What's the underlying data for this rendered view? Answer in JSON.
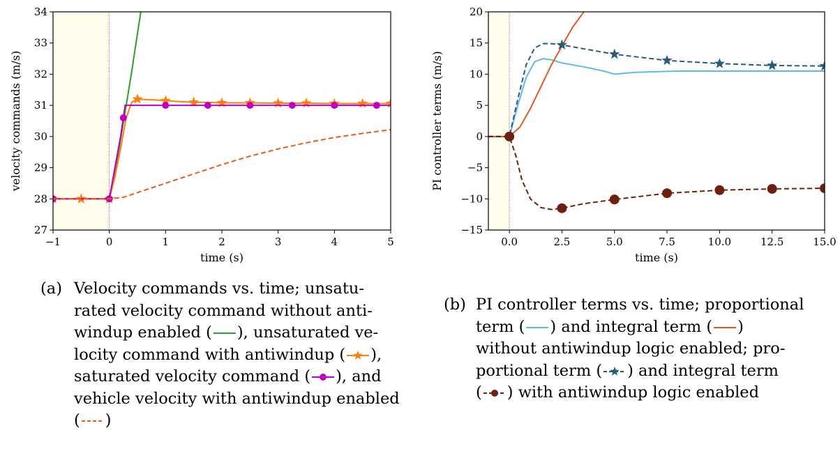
{
  "chart_data": [
    {
      "type": "line",
      "xlabel": "time (s)",
      "ylabel": "velocity commands (m/s)",
      "xlim": [
        -1,
        5
      ],
      "ylim": [
        27,
        34
      ],
      "xticks": [
        "−1",
        "0",
        "1",
        "2",
        "3",
        "4",
        "5"
      ],
      "yticks": [
        "27",
        "28",
        "29",
        "30",
        "31",
        "32",
        "33",
        "34"
      ],
      "shaded_region": [
        -1,
        0
      ],
      "marker_line_x": 0,
      "series": [
        {
          "color": "#2ca02c",
          "marker": "none",
          "style": "solid",
          "x": [
            -1,
            0,
            0.1,
            0.2,
            0.3,
            0.4,
            0.5,
            0.56
          ],
          "y": [
            28,
            28,
            28.8,
            29.9,
            31.0,
            32.1,
            33.3,
            34.0
          ]
        },
        {
          "color": "#ff7f0e",
          "marker": "star",
          "style": "solid",
          "x": [
            -1,
            -0.5,
            0,
            0.1,
            0.2,
            0.3,
            0.4,
            0.5,
            0.75,
            1.0,
            1.25,
            1.5,
            1.75,
            2.0,
            2.5,
            3.0,
            3.5,
            4.0,
            4.5,
            5.0
          ],
          "y": [
            28,
            28,
            28,
            28.7,
            29.6,
            30.6,
            31.1,
            31.2,
            31.18,
            31.15,
            31.12,
            31.1,
            31.1,
            31.08,
            31.08,
            31.07,
            31.07,
            31.06,
            31.06,
            31.06
          ],
          "marker_x": [
            -1,
            -0.5,
            0,
            0.5,
            1,
            1.5,
            2,
            2.5,
            3,
            3.5,
            4,
            4.5,
            5
          ]
        },
        {
          "color": "#c000c0",
          "marker": "circle",
          "style": "solid",
          "x": [
            -1,
            0,
            0.1,
            0.2,
            0.25,
            0.28,
            5
          ],
          "y": [
            28,
            28,
            29.0,
            30.0,
            30.6,
            31.0,
            31.0
          ],
          "marker_x": [
            -1,
            0,
            0.25,
            1,
            1.75,
            2.5,
            3.25,
            4,
            4.75
          ]
        },
        {
          "color": "#e85d1a",
          "marker": "none",
          "style": "dashed",
          "x": [
            -1,
            0,
            0.25,
            0.5,
            1,
            1.5,
            2,
            2.5,
            3,
            3.5,
            4,
            4.5,
            5
          ],
          "y": [
            28,
            28,
            28.05,
            28.2,
            28.5,
            28.8,
            29.1,
            29.37,
            29.6,
            29.8,
            29.97,
            30.1,
            30.22
          ]
        }
      ]
    },
    {
      "type": "line",
      "xlabel": "time (s)",
      "ylabel": "PI controller terms (m/s)",
      "xlim": [
        -1,
        15
      ],
      "ylim": [
        -15,
        20
      ],
      "xticks": [
        "0.0",
        "2.5",
        "5.0",
        "7.5",
        "10.0",
        "12.5",
        "15.0"
      ],
      "yticks": [
        "−15",
        "−10",
        "−5",
        "0",
        "5",
        "10",
        "15",
        "20"
      ],
      "shaded_region": [
        -1,
        0
      ],
      "marker_line_x": 0,
      "series": [
        {
          "color": "#5bbce4",
          "marker": "none",
          "style": "solid",
          "x": [
            -1,
            0,
            0.4,
            0.8,
            1.2,
            1.6,
            2.0,
            2.5,
            3.5,
            4.5,
            5.0,
            6,
            8,
            10,
            12,
            15
          ],
          "y": [
            0,
            0,
            5,
            9.5,
            12.0,
            12.5,
            12.3,
            11.8,
            11.2,
            10.5,
            10.0,
            10.3,
            10.5,
            10.5,
            10.5,
            10.5
          ]
        },
        {
          "color": "#e05a20",
          "marker": "none",
          "style": "solid",
          "x": [
            -1,
            0,
            0.5,
            1.0,
            1.5,
            2.0,
            2.5,
            3.0,
            3.5,
            3.75
          ],
          "y": [
            0,
            0,
            1.5,
            4.5,
            8.0,
            11.5,
            14.5,
            17.5,
            19.8,
            21
          ]
        },
        {
          "color": "#2a5b78",
          "marker": "star",
          "style": "dashed",
          "x": [
            -1,
            0,
            0.4,
            0.8,
            1.2,
            1.6,
            2.0,
            2.5,
            3.5,
            5.0,
            7.5,
            10,
            12.5,
            15
          ],
          "y": [
            0,
            0,
            6,
            11.5,
            14.2,
            14.9,
            14.9,
            14.7,
            14.1,
            13.2,
            12.2,
            11.7,
            11.4,
            11.3
          ],
          "marker_x": [
            2.5,
            5.0,
            7.5,
            10,
            12.5,
            15
          ]
        },
        {
          "color": "#6e2010",
          "marker": "circle",
          "style": "dashed",
          "x": [
            -1,
            0,
            0.3,
            0.6,
            1.0,
            1.5,
            2.0,
            2.5,
            3.5,
            5.0,
            7.5,
            10,
            12.5,
            15
          ],
          "y": [
            0,
            0,
            -3,
            -7,
            -10,
            -11.4,
            -11.7,
            -11.5,
            -10.8,
            -10.1,
            -9.1,
            -8.6,
            -8.4,
            -8.3
          ],
          "marker_x": [
            0,
            2.5,
            5.0,
            7.5,
            10,
            12.5,
            15
          ]
        }
      ]
    }
  ],
  "captions": {
    "a": {
      "label": "(a)",
      "lines": [
        "Velocity   commands   vs.   time;   unsatu-",
        "rated  velocity  command  without  anti-",
        "windup enabled ({g1}), unsaturated ve-",
        "locity command with antiwindup ({g2}),",
        "saturated velocity command ({g3}), and",
        "vehicle velocity with antiwindup enabled",
        "({g4})"
      ]
    },
    "b": {
      "label": "(b)",
      "lines": [
        "PI controller terms vs. time; proportional",
        "term  ({g5})  and  integral  term  ({g6})",
        "without antiwindup logic enabled; pro-",
        "portional term ({g7}) and integral term",
        "({g8}) with antiwindup logic enabled"
      ]
    }
  }
}
